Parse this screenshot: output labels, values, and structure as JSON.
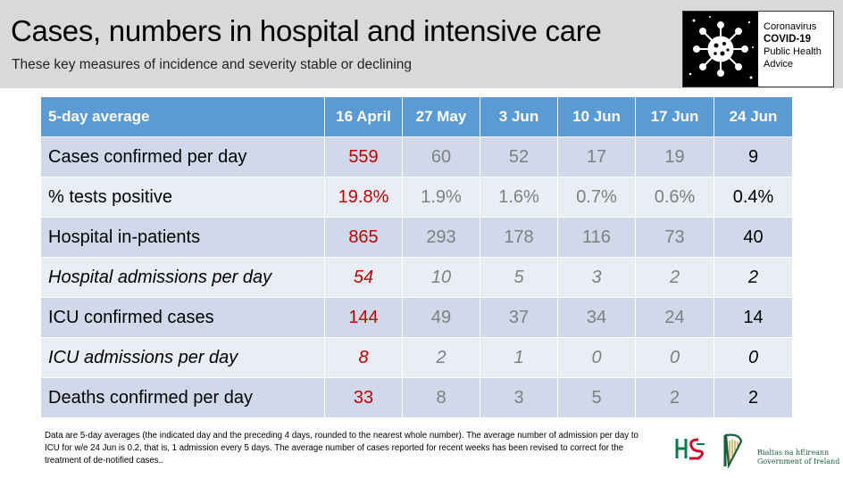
{
  "header": {
    "title": "Cases, numbers in hospital and intensive care",
    "subtitle": "These key measures of incidence and severity stable or declining"
  },
  "logo": {
    "line1": "Coronavirus",
    "line2": "COVID-19",
    "line3": "Public Health",
    "line4": "Advice"
  },
  "table": {
    "columns": [
      "5-day average",
      "16 April",
      "27 May",
      "3 Jun",
      "10 Jun",
      "17 Jun",
      "24 Jun"
    ],
    "rows": [
      {
        "label": "Cases confirmed per day",
        "italic": false,
        "values": [
          "559",
          "60",
          "52",
          "17",
          "19",
          "9"
        ]
      },
      {
        "label": "% tests positive",
        "italic": false,
        "values": [
          "19.8%",
          "1.9%",
          "1.6%",
          "0.7%",
          "0.6%",
          "0.4%"
        ]
      },
      {
        "label": "Hospital in-patients",
        "italic": false,
        "values": [
          "865",
          "293",
          "178",
          "116",
          "73",
          "40"
        ]
      },
      {
        "label": "Hospital admissions per day",
        "italic": true,
        "values": [
          "54",
          "10",
          "5",
          "3",
          "2",
          "2"
        ]
      },
      {
        "label": "ICU confirmed cases",
        "italic": false,
        "values": [
          "144",
          "49",
          "37",
          "34",
          "24",
          "14"
        ]
      },
      {
        "label": "ICU admissions per day",
        "italic": true,
        "values": [
          "8",
          "2",
          "1",
          "0",
          "0",
          "0"
        ]
      },
      {
        "label": "Deaths confirmed per day",
        "italic": false,
        "values": [
          "33",
          "8",
          "3",
          "5",
          "2",
          "2"
        ]
      }
    ]
  },
  "footnote": "Data are 5-day averages (the indicated day and the preceding 4 days, rounded to the nearest whole number). The average number of admission per day to ICU for w/e 24 Jun is 0.2, that is, 1 admission every 5 days. The average number of cases reported for recent weeks has been revised to correct for the treatment of de-notified cases..",
  "government": {
    "line1": "Rialtas na hÉireann",
    "line2": "Government of Ireland"
  },
  "colors": {
    "header_bg": "#d9d9d9",
    "table_header": "#5b9bd5",
    "row_dark": "#cfd9ea",
    "row_light": "#e9edf4",
    "highlight_red": "#c00000",
    "muted_grey": "#7f7f7f"
  }
}
